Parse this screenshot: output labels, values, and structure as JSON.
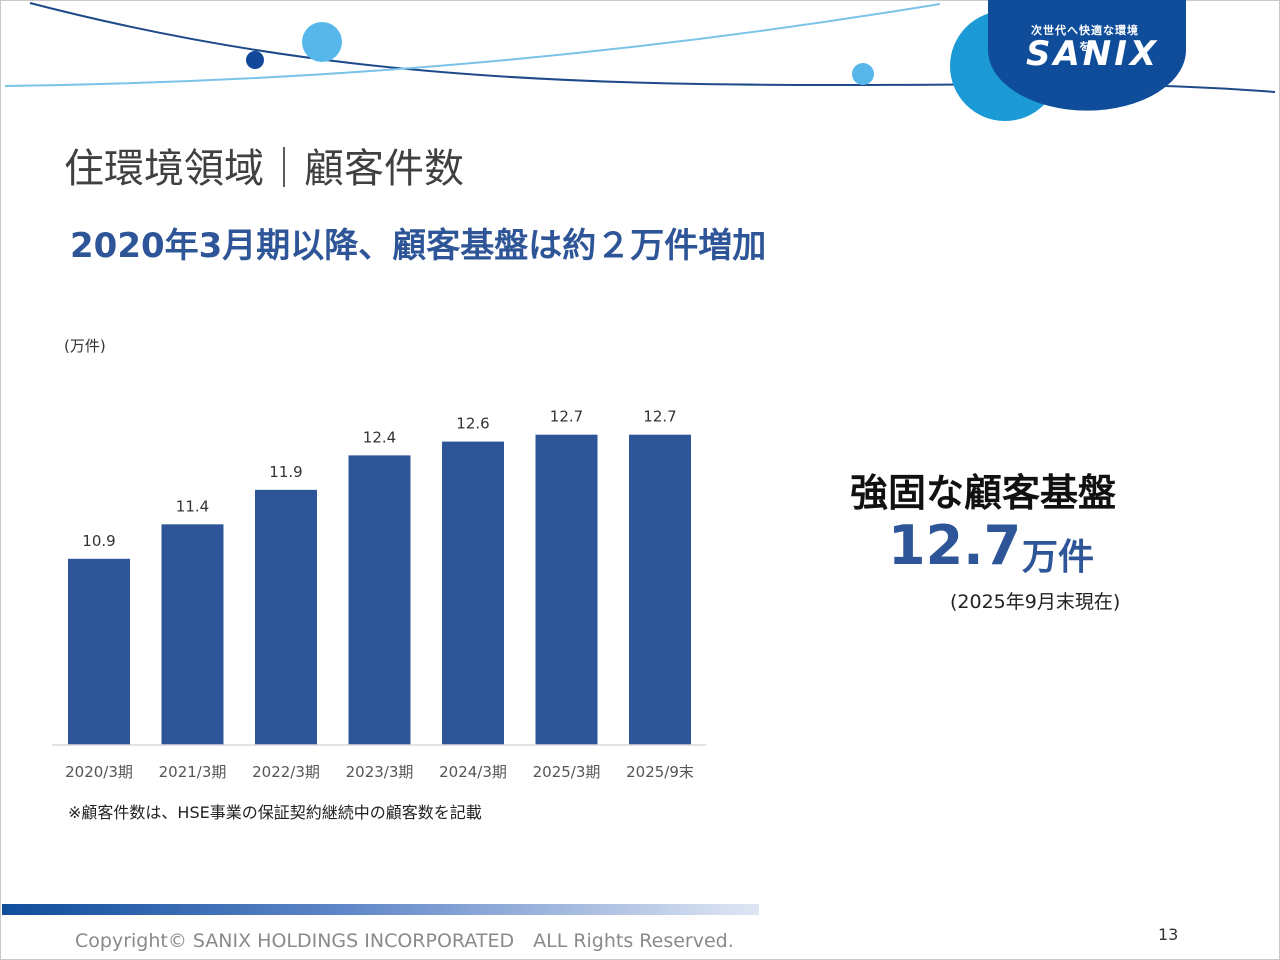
{
  "logo": {
    "tagline": "次世代へ快適な環境を",
    "name": "SANIX"
  },
  "page_title": "住環境領域｜顧客件数",
  "headline": "2020年3月期以降、顧客基盤は約２万件増加",
  "kpi": {
    "label": "強固な顧客基盤",
    "value": "12.7",
    "unit": "万件",
    "date": "(2025年9月末現在)"
  },
  "note": "※顧客件数は、HSE事業の保証契約継続中の顧客数を記載",
  "footer": {
    "copyright": "Copyright© SANIX HOLDINGS INCORPORATED　ALL Rights Reserved.",
    "page_number": "13"
  },
  "colors": {
    "bar": "#2e5597",
    "accent": "#2e5597",
    "brand_dark": "#0f4d9b",
    "brand_light": "#1b9ad6"
  },
  "chart_data": {
    "type": "bar",
    "title": "",
    "unit_label": "(万件)",
    "categories": [
      "2020/3期",
      "2021/3期",
      "2022/3期",
      "2023/3期",
      "2024/3期",
      "2025/3期",
      "2025/9末"
    ],
    "values": [
      10.9,
      11.4,
      11.9,
      12.4,
      12.6,
      12.7,
      12.7
    ],
    "data_labels": [
      "10.9",
      "11.4",
      "11.9",
      "12.4",
      "12.6",
      "12.7",
      "12.7"
    ],
    "ylim": [
      8.2,
      13.0
    ],
    "grid": false,
    "legend": "none"
  }
}
